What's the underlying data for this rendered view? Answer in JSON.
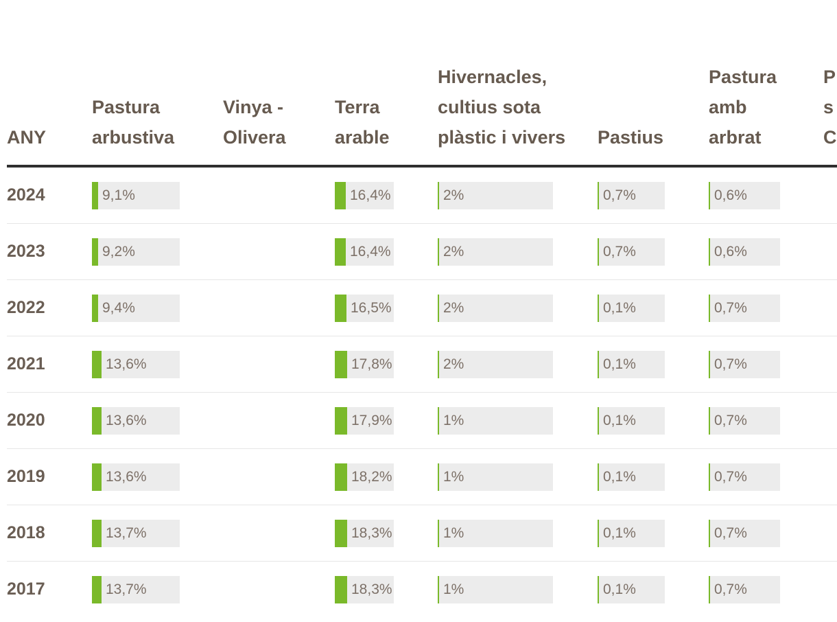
{
  "table": {
    "headers": [
      "ANY",
      "Pastura arbustiva",
      "Vinya - Olivera",
      "Terra arable",
      "Hivernacles, cultius sota plàstic i vivers",
      "Pastius",
      "Pastura amb arbrat",
      "P s C"
    ],
    "rows": [
      {
        "year": "2024",
        "cells": [
          "9,1%",
          "",
          "16,4%",
          "2%",
          "0,7%",
          "0,6%"
        ],
        "values": [
          9.1,
          null,
          16.4,
          2,
          0.7,
          0.6
        ]
      },
      {
        "year": "2023",
        "cells": [
          "9,2%",
          "",
          "16,4%",
          "2%",
          "0,7%",
          "0,6%"
        ],
        "values": [
          9.2,
          null,
          16.4,
          2,
          0.7,
          0.6
        ]
      },
      {
        "year": "2022",
        "cells": [
          "9,4%",
          "",
          "16,5%",
          "2%",
          "0,1%",
          "0,7%"
        ],
        "values": [
          9.4,
          null,
          16.5,
          2,
          0.1,
          0.7
        ]
      },
      {
        "year": "2021",
        "cells": [
          "13,6%",
          "",
          "17,8%",
          "2%",
          "0,1%",
          "0,7%"
        ],
        "values": [
          13.6,
          null,
          17.8,
          2,
          0.1,
          0.7
        ]
      },
      {
        "year": "2020",
        "cells": [
          "13,6%",
          "",
          "17,9%",
          "1%",
          "0,1%",
          "0,7%"
        ],
        "values": [
          13.6,
          null,
          17.9,
          1,
          0.1,
          0.7
        ]
      },
      {
        "year": "2019",
        "cells": [
          "13,6%",
          "",
          "18,2%",
          "1%",
          "0,1%",
          "0,7%"
        ],
        "values": [
          13.6,
          null,
          18.2,
          1,
          0.1,
          0.7
        ]
      },
      {
        "year": "2018",
        "cells": [
          "13,7%",
          "",
          "18,3%",
          "1%",
          "0,1%",
          "0,7%"
        ],
        "values": [
          13.7,
          null,
          18.3,
          1,
          0.1,
          0.7
        ]
      },
      {
        "year": "2017",
        "cells": [
          "13,7%",
          "",
          "18,3%",
          "1%",
          "0,1%",
          "0,7%"
        ],
        "values": [
          13.7,
          null,
          18.3,
          1,
          0.1,
          0.7
        ]
      }
    ]
  },
  "colors": {
    "bar_fill": "#7ab92a",
    "bar_bg": "#ececec",
    "header_rule": "#2f2f2f",
    "text": "#665a4f"
  }
}
